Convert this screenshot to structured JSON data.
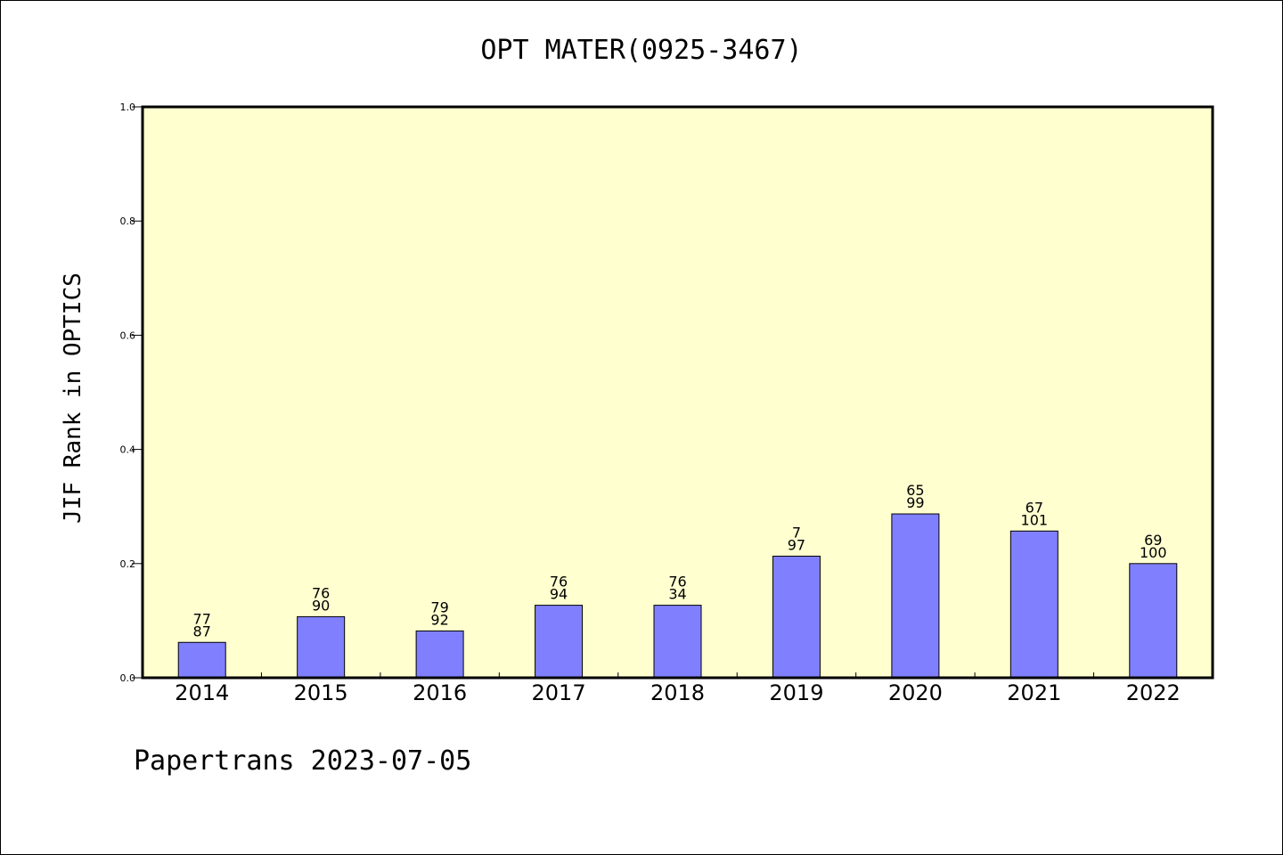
{
  "chart_data": {
    "type": "bar",
    "title": "OPT MATER(0925-3467)",
    "ylabel": "JIF Rank in OPTICS",
    "xlabel": "",
    "ylim": [
      0,
      1.0
    ],
    "yticks": [
      "0.0",
      "0.2",
      "0.4",
      "0.6",
      "0.8",
      "1.0"
    ],
    "grid": false,
    "categories": [
      "2014",
      "2015",
      "2016",
      "2017",
      "2018",
      "2019",
      "2020",
      "2021",
      "2022"
    ],
    "values": [
      0.062,
      0.107,
      0.082,
      0.127,
      0.127,
      0.213,
      0.287,
      0.257,
      0.2
    ],
    "label_top": [
      "77",
      "76",
      "79",
      "76",
      "76",
      "7",
      "65",
      "67",
      "69"
    ],
    "label_bottom": [
      "87",
      "90",
      "92",
      "94",
      "34",
      "97",
      "99",
      "101",
      "100"
    ],
    "colors": {
      "bar": "#8080ff",
      "plot_bg": "#ffffd0"
    }
  },
  "footer": {
    "text": "Papertrans 2023-07-05"
  }
}
